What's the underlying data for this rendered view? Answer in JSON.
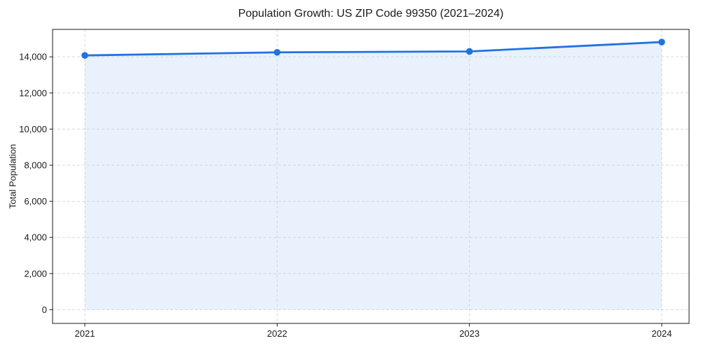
{
  "chart_data": {
    "type": "line",
    "title": "Population Growth: US ZIP Code 99350 (2021–2024)",
    "xlabel": "",
    "ylabel": "Total Population",
    "x": [
      "2021",
      "2022",
      "2023",
      "2024"
    ],
    "series": [
      {
        "name": "Total Population",
        "values": [
          14080,
          14250,
          14300,
          14820
        ]
      }
    ],
    "yticks": [
      0,
      2000,
      4000,
      6000,
      8000,
      10000,
      12000,
      14000
    ],
    "ytick_labels": [
      "0",
      "2,000",
      "4,000",
      "6,000",
      "8,000",
      "10,000",
      "12,000",
      "14,000"
    ],
    "ylim": [
      -760,
      15520
    ],
    "grid": true,
    "grid_style": "dashed",
    "legend": "none",
    "marker": "circle",
    "area_fill": true,
    "colors": {
      "line": "#2272e2",
      "fill": "#2272e2",
      "fill_opacity": 0.1,
      "grid": "#d8d8d8",
      "spine": "#1a1a1a",
      "text": "#1a1a1a",
      "background": "#ffffff"
    }
  }
}
